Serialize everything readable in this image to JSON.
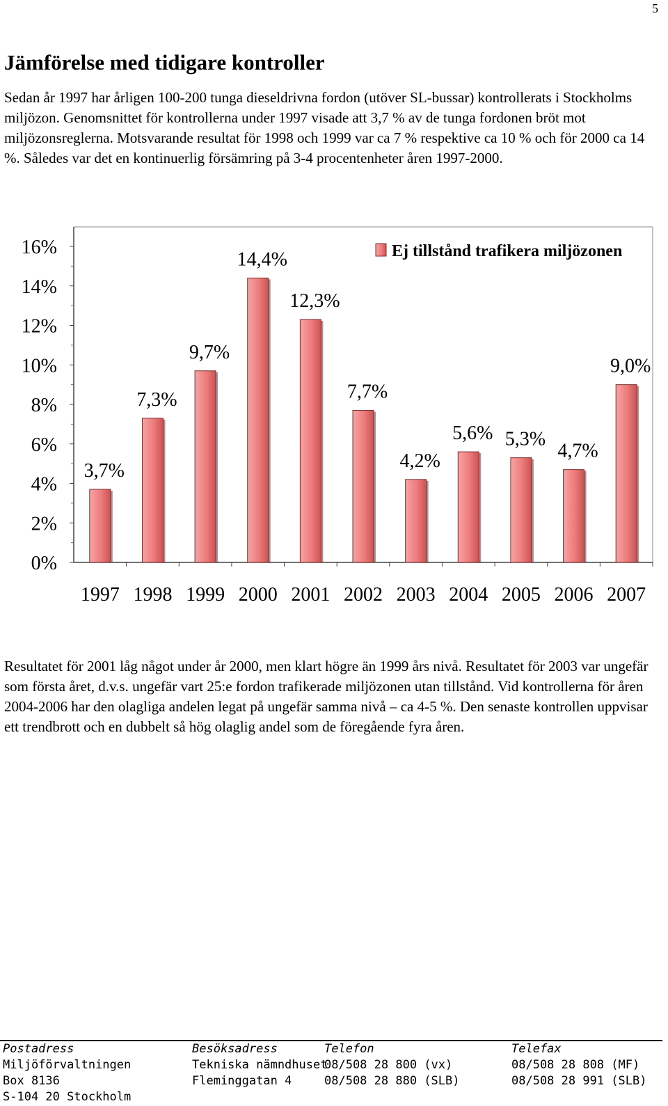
{
  "page": {
    "number": "5",
    "heading": "Jämförelse med tidigare kontroller",
    "para1": "Sedan år 1997 har årligen 100-200 tunga dieseldrivna fordon (utöver SL-bussar) kontrollerats i Stockholms miljözon. Genomsnittet för kontrollerna under 1997 visade att 3,7 % av de tunga fordonen bröt mot miljözonsreglerna. Motsvarande resultat för 1998 och 1999 var ca 7 % respektive ca 10 % och för 2000 ca 14 %. Således var det en kontinuerlig försämring på 3-4 procentenheter åren 1997-2000.",
    "para2": "Resultatet för 2001 låg något under år 2000, men klart högre än 1999 års nivå. Resultatet för 2003 var ungefär som första året, d.v.s. ungefär vart 25:e fordon trafikerade miljözonen utan tillstånd. Vid kontrollerna för åren 2004-2006 har den olagliga andelen legat på ungefär samma nivå – ca 4-5 %.  Den senaste kontrollen uppvisar ett trendbrott och en dubbelt så hög olaglig andel som de föregående fyra åren."
  },
  "chart_data": {
    "type": "bar",
    "categories": [
      "1997",
      "1998",
      "1999",
      "2000",
      "2001",
      "2002",
      "2003",
      "2004",
      "2005",
      "2006",
      "2007"
    ],
    "series": [
      {
        "name": "Ej tillstånd trafikera miljözonen",
        "values": [
          3.7,
          7.3,
          9.7,
          14.4,
          12.3,
          7.7,
          4.2,
          5.6,
          5.3,
          4.7,
          9.0
        ],
        "labels": [
          "3,7%",
          "7,3%",
          "9,7%",
          "14,4%",
          "12,3%",
          "7,7%",
          "4,2%",
          "5,6%",
          "5,3%",
          "4,7%",
          "9,0%"
        ]
      }
    ],
    "yticks": [
      "0%",
      "2%",
      "4%",
      "6%",
      "8%",
      "10%",
      "12%",
      "14%",
      "16%"
    ],
    "ylim": [
      0,
      16
    ],
    "legend": "top-right",
    "bar_color": "#ee7b7b",
    "grid": false
  },
  "footer": {
    "columns": [
      {
        "head": "Postadress",
        "lines": [
          "Miljöförvaltningen",
          "Box 8136",
          "S-104 20 Stockholm"
        ]
      },
      {
        "head": "Besöksadress",
        "lines": [
          "Tekniska nämndhuset",
          "Fleminggatan 4"
        ]
      },
      {
        "head": "Telefon",
        "lines": [
          "08/508 28 800 (vx)",
          "08/508 28 880 (SLB)"
        ]
      },
      {
        "head": "Telefax",
        "lines": [
          "08/508 28 808 (MF)",
          "08/508 28 991 (SLB)"
        ]
      }
    ]
  }
}
